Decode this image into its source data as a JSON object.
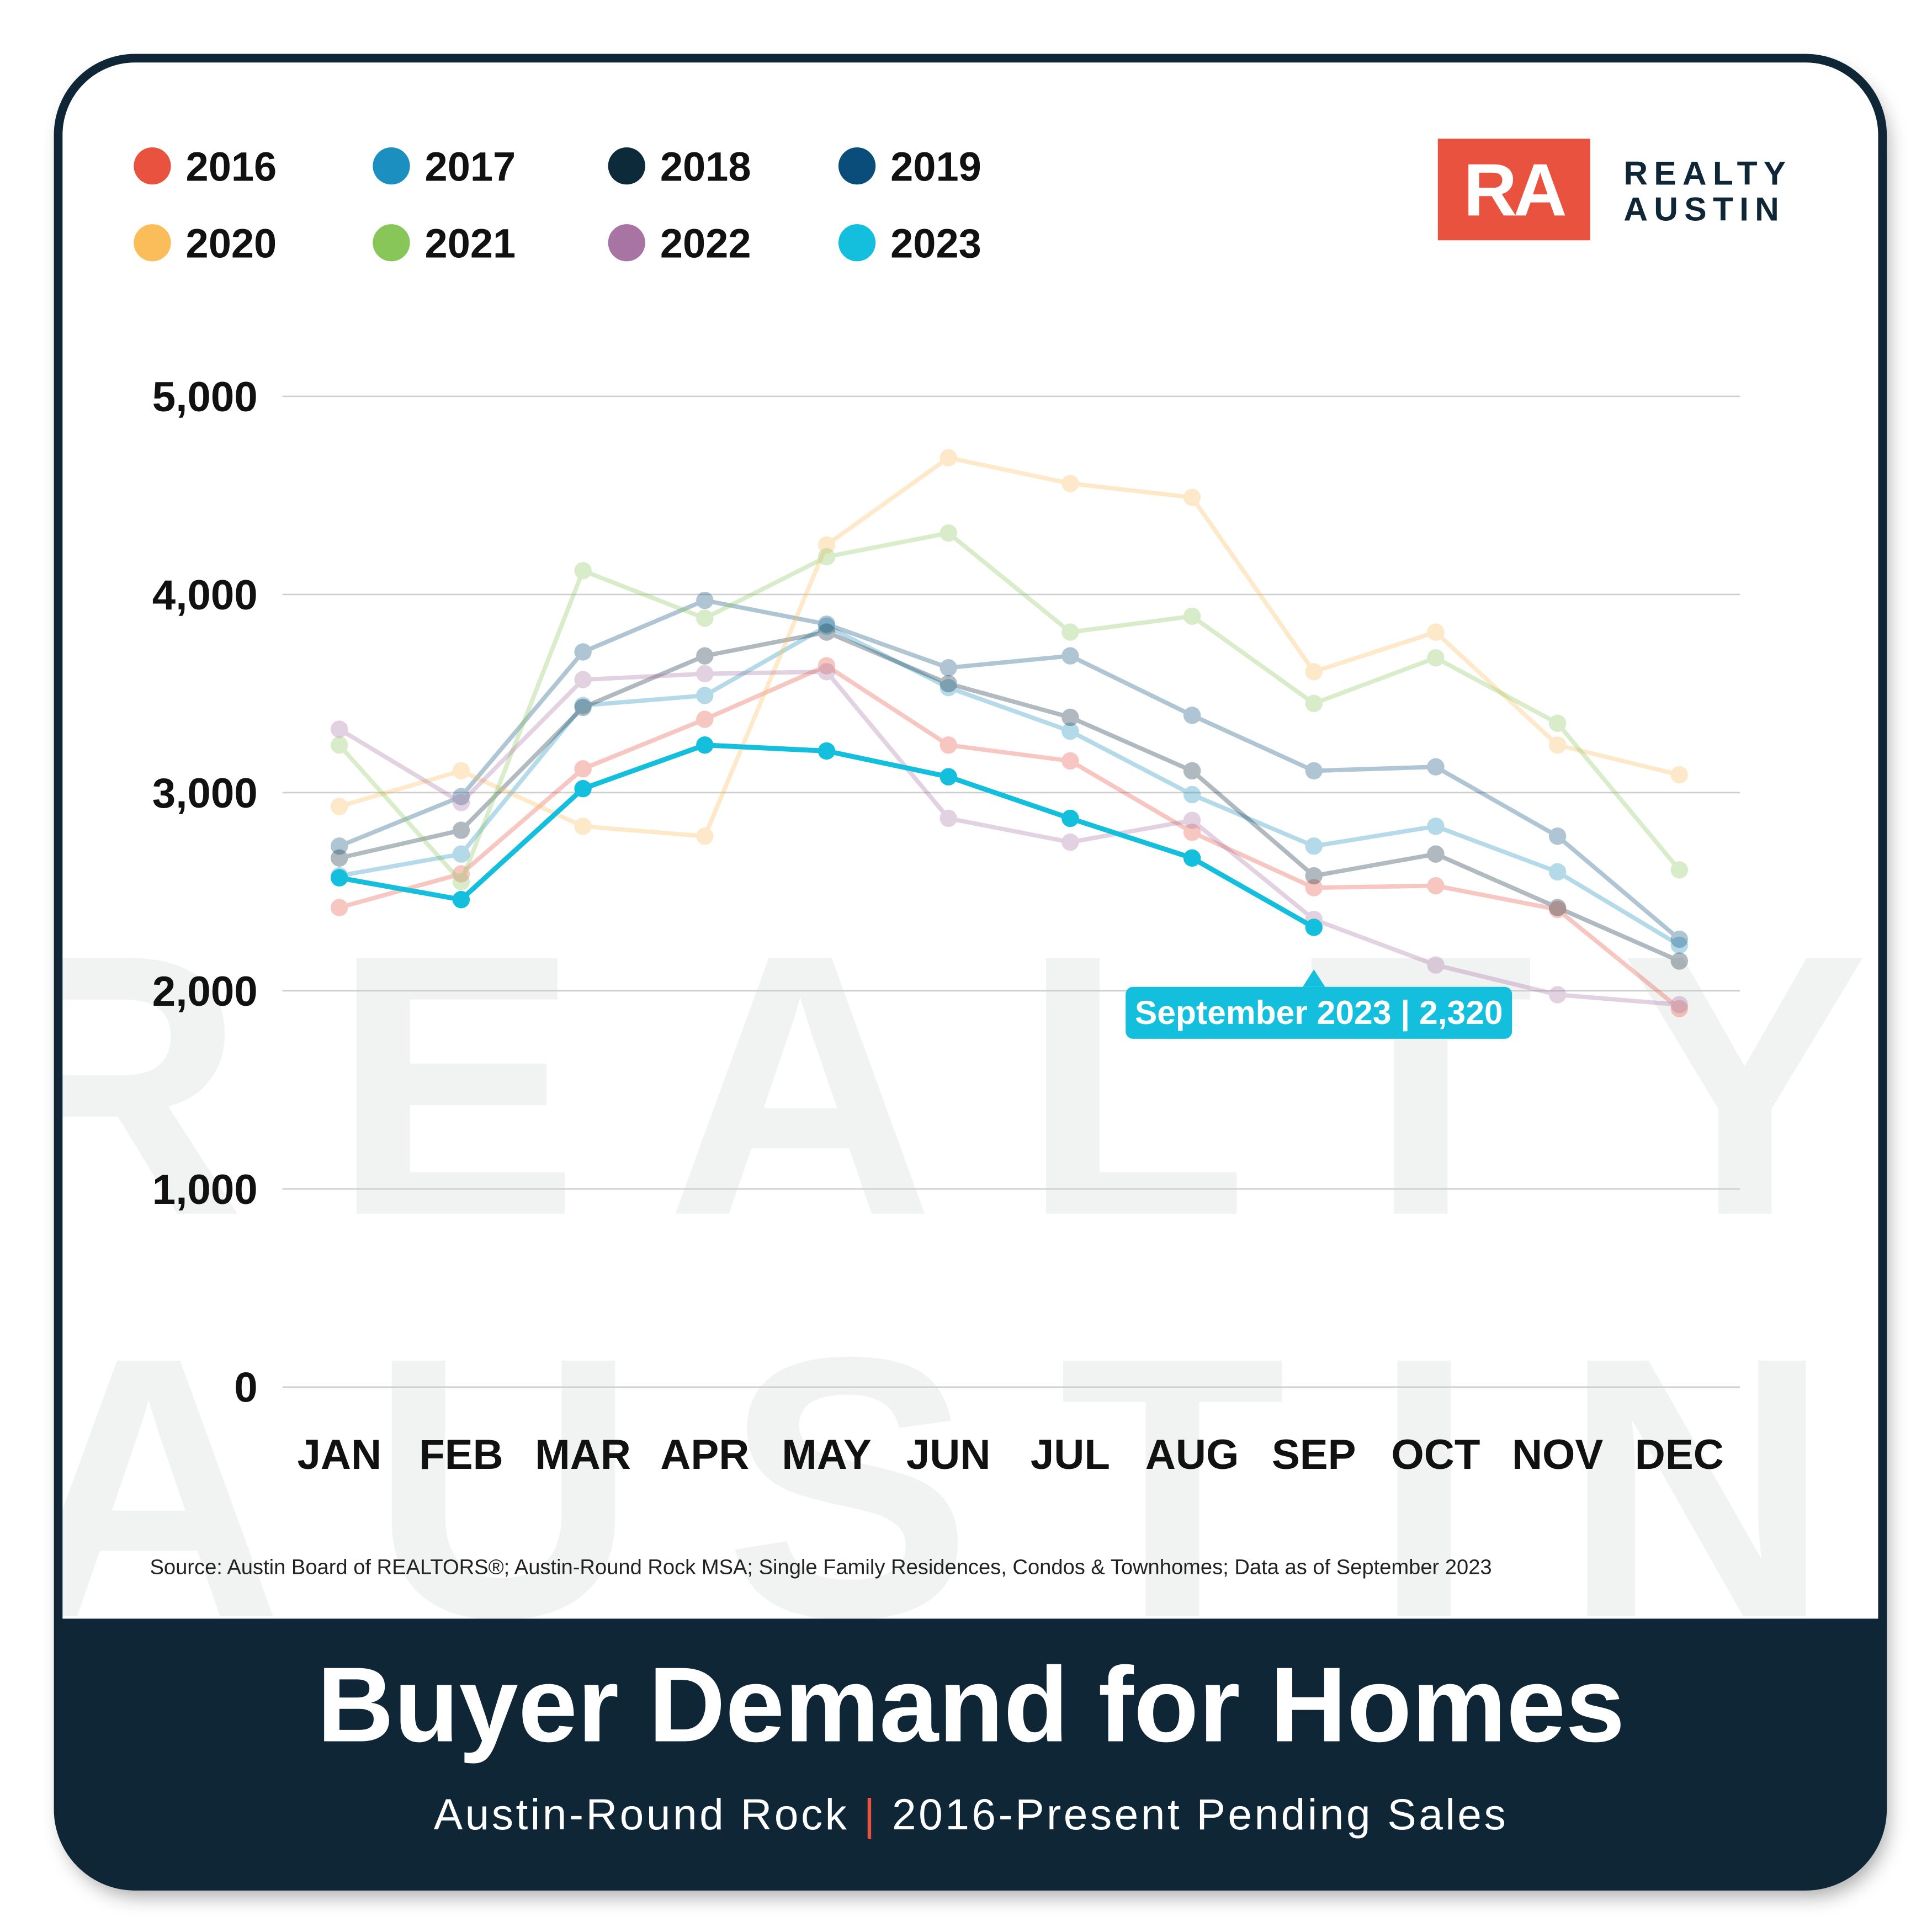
{
  "chart_data": {
    "type": "line",
    "title": "Buyer Demand for Homes",
    "subtitle": [
      "Austin-Round Rock",
      "|",
      "2016-Present Pending Sales"
    ],
    "source": "Source: Austin Board of REALTORS®; Austin-Round Rock MSA; Single Family Residences, Condos & Townhomes; Data as of September 2023",
    "logo": {
      "mark": "RA",
      "lines": [
        "REALTY",
        "AUSTIN"
      ]
    },
    "watermark": [
      "REALTY",
      "AUSTIN"
    ],
    "annotation": "September 2023 | 2,320",
    "categories": [
      "JAN",
      "FEB",
      "MAR",
      "APR",
      "MAY",
      "JUN",
      "JUL",
      "AUG",
      "SEP",
      "OCT",
      "NOV",
      "DEC"
    ],
    "series": [
      {
        "name": "2016",
        "color": "#e8523f",
        "values": [
          2420,
          2590,
          3120,
          3370,
          3640,
          3240,
          3160,
          2800,
          2520,
          2530,
          2410,
          1910
        ]
      },
      {
        "name": "2017",
        "color": "#1a8fc0",
        "values": [
          2580,
          2690,
          3440,
          3490,
          3840,
          3530,
          3310,
          2990,
          2730,
          2830,
          2600,
          2230
        ]
      },
      {
        "name": "2018",
        "color": "#0d2a3a",
        "values": [
          2670,
          2810,
          3430,
          3690,
          3810,
          3550,
          3380,
          3110,
          2580,
          2690,
          2420,
          2150
        ]
      },
      {
        "name": "2019",
        "color": "#0a4d7a",
        "values": [
          2730,
          2980,
          3710,
          3970,
          3850,
          3630,
          3690,
          3390,
          3110,
          3130,
          2780,
          2260
        ]
      },
      {
        "name": "2020",
        "color": "#fbbd5a",
        "values": [
          2930,
          3110,
          2830,
          2780,
          4250,
          4690,
          4560,
          4490,
          3610,
          3810,
          3240,
          3090
        ]
      },
      {
        "name": "2021",
        "color": "#88c65a",
        "values": [
          3240,
          2550,
          4120,
          3880,
          4190,
          4310,
          3810,
          3890,
          3450,
          3680,
          3350,
          2610
        ]
      },
      {
        "name": "2022",
        "color": "#a874a3",
        "values": [
          3320,
          2950,
          3570,
          3600,
          3610,
          2870,
          2750,
          2860,
          2360,
          2130,
          1980,
          1930
        ]
      },
      {
        "name": "2023",
        "color": "#13bfdd",
        "values": [
          2570,
          2460,
          3020,
          3240,
          3210,
          3080,
          2870,
          2670,
          2320,
          null,
          null,
          null
        ]
      }
    ],
    "ylim": [
      0,
      5000
    ],
    "yticks": [
      0,
      {
        "value": 1000,
        "label": "1,000"
      },
      {
        "value": 2000,
        "label": "2,000"
      },
      {
        "value": 3000,
        "label": "3,000"
      },
      {
        "value": 4000,
        "label": "4,000"
      },
      {
        "value": 5000,
        "label": "5,000"
      }
    ],
    "grid": true
  }
}
